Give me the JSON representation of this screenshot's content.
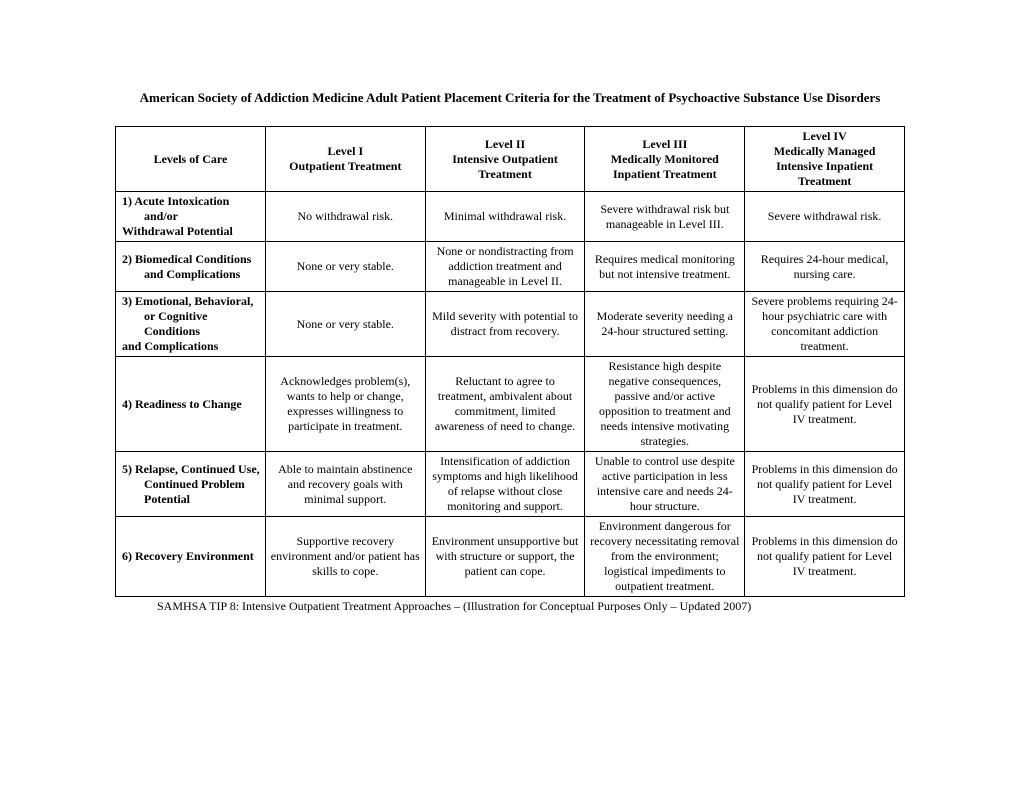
{
  "title": "American Society of Addiction Medicine Adult Patient Placement Criteria for the Treatment of Psychoactive Substance Use Disorders",
  "columns": {
    "c0": "Levels of Care",
    "c1_a": "Level I",
    "c1_b": "Outpatient Treatment",
    "c2_a": "Level II",
    "c2_b": "Intensive Outpatient Treatment",
    "c3_a": "Level III",
    "c3_b": "Medically Monitored Inpatient Treatment",
    "c4_a": "Level IV",
    "c4_b": "Medically Managed Intensive Inpatient Treatment"
  },
  "rows": {
    "r1": {
      "label_a": "1)  Acute Intoxication",
      "label_b": "and/or",
      "label_c": "Withdrawal Potential",
      "c1": "No withdrawal risk.",
      "c2": "Minimal withdrawal risk.",
      "c3": "Severe withdrawal risk but manageable in Level III.",
      "c4": "Severe withdrawal risk."
    },
    "r2": {
      "label_a": "2)  Biomedical Conditions",
      "label_b": "and Complications",
      "c1": "None or very stable.",
      "c2": "None or nondistracting from addiction treatment and manageable in Level II.",
      "c3": "Requires medical monitoring but not intensive treatment.",
      "c4": "Requires 24-hour medical, nursing care."
    },
    "r3": {
      "label_a": "3)  Emotional, Behavioral,",
      "label_b": "or Cognitive Conditions",
      "label_c": "and Complications",
      "c1": "None or very stable.",
      "c2": "Mild severity with potential to distract from recovery.",
      "c3": "Moderate severity needing a 24-hour structured setting.",
      "c4": "Severe problems requiring 24-hour psychiatric care with concomitant addiction treatment."
    },
    "r4": {
      "label_a": "4)  Readiness to Change",
      "c1": "Acknowledges problem(s), wants to help or change, expresses willingness to participate in treatment.",
      "c2": "Reluctant to agree to treatment, ambivalent about commitment, limited awareness of need to change.",
      "c3": "Resistance high despite negative consequences, passive and/or active opposition to treatment and needs intensive motivating strategies.",
      "c4": "Problems in this dimension do not qualify patient for Level IV treatment."
    },
    "r5": {
      "label_a": "5)  Relapse, Continued Use,",
      "label_b": "Continued Problem",
      "label_c": "Potential",
      "c1": "Able to maintain abstinence and recovery goals with minimal support.",
      "c2": "Intensification of addiction symptoms and high likelihood of relapse without close monitoring and support.",
      "c3": "Unable to control use despite active participation in less intensive care and needs 24-hour structure.",
      "c4": "Problems in this dimension do not qualify patient for Level IV treatment."
    },
    "r6": {
      "label_a": "6)  Recovery Environment",
      "c1": "Supportive recovery environment and/or patient has skills to cope.",
      "c2": "Environment unsupportive but with structure or support, the patient can cope.",
      "c3": "Environment dangerous for recovery necessitating removal from the environment; logistical impediments to outpatient treatment.",
      "c4": "Problems in this dimension do not qualify patient for Level IV treatment."
    }
  },
  "footnote": "SAMHSA TIP 8: Intensive Outpatient Treatment Approaches – (Illustration for Conceptual Purposes Only – Updated 2007)"
}
